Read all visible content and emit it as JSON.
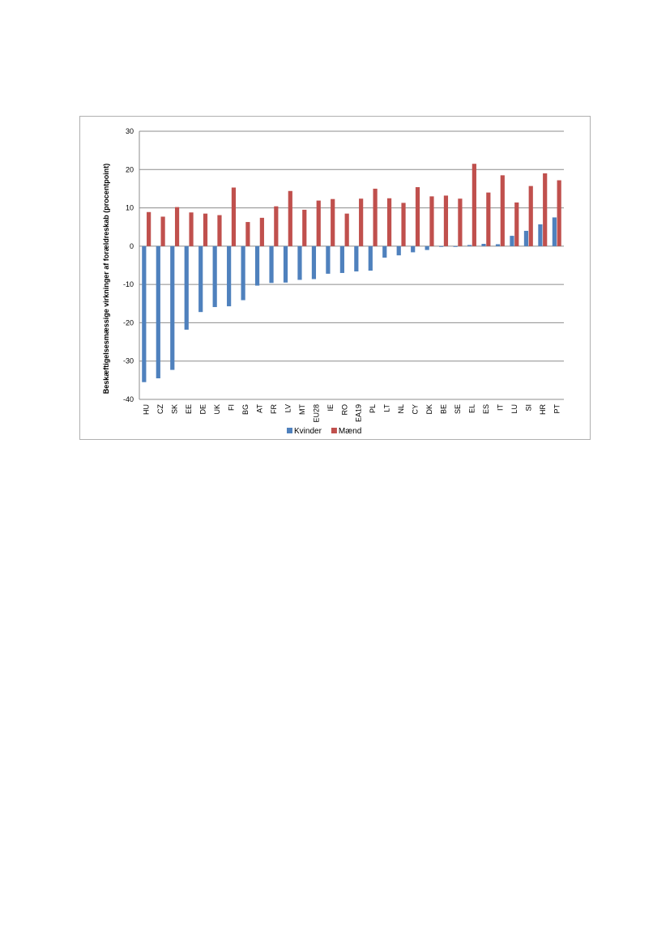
{
  "chart_data": {
    "type": "bar",
    "title": "",
    "xlabel": "",
    "ylabel": "Beskæftigelsesmæssige virkninger af forældreskab (procentpoint)",
    "ylim": [
      -40,
      30
    ],
    "yticks": [
      30,
      20,
      10,
      0,
      -10,
      -20,
      -30,
      -40
    ],
    "grid": true,
    "legend_position": "bottom",
    "categories": [
      "HU",
      "CZ",
      "SK",
      "EE",
      "DE",
      "UK",
      "FI",
      "BG",
      "AT",
      "FR",
      "LV",
      "MT",
      "EU28",
      "IE",
      "RO",
      "EA19",
      "PL",
      "LT",
      "NL",
      "CY",
      "DK",
      "BE",
      "SE",
      "EL",
      "ES",
      "IT",
      "LU",
      "SI",
      "HR",
      "PT"
    ],
    "series": [
      {
        "name": "Kvinder",
        "color": "#4f81bd",
        "values": [
          -35.5,
          -34.5,
          -32.3,
          -21.8,
          -17.2,
          -15.9,
          -15.7,
          -14.1,
          -10.3,
          -9.6,
          -9.5,
          -8.8,
          -8.6,
          -7.2,
          -7.0,
          -6.6,
          -6.4,
          -3.0,
          -2.4,
          -1.6,
          -1.0,
          -0.2,
          -0.2,
          0.3,
          0.6,
          0.5,
          2.7,
          4.0,
          5.7,
          7.5
        ]
      },
      {
        "name": "Mænd",
        "color": "#c0504d",
        "values": [
          8.9,
          7.7,
          10.2,
          8.8,
          8.5,
          8.1,
          15.3,
          6.3,
          7.4,
          10.4,
          14.4,
          9.5,
          11.9,
          12.3,
          8.5,
          12.4,
          15.0,
          12.5,
          11.3,
          15.4,
          13.0,
          13.2,
          12.4,
          21.5,
          14.0,
          18.5,
          11.4,
          15.7,
          19.0,
          17.2
        ]
      }
    ]
  }
}
